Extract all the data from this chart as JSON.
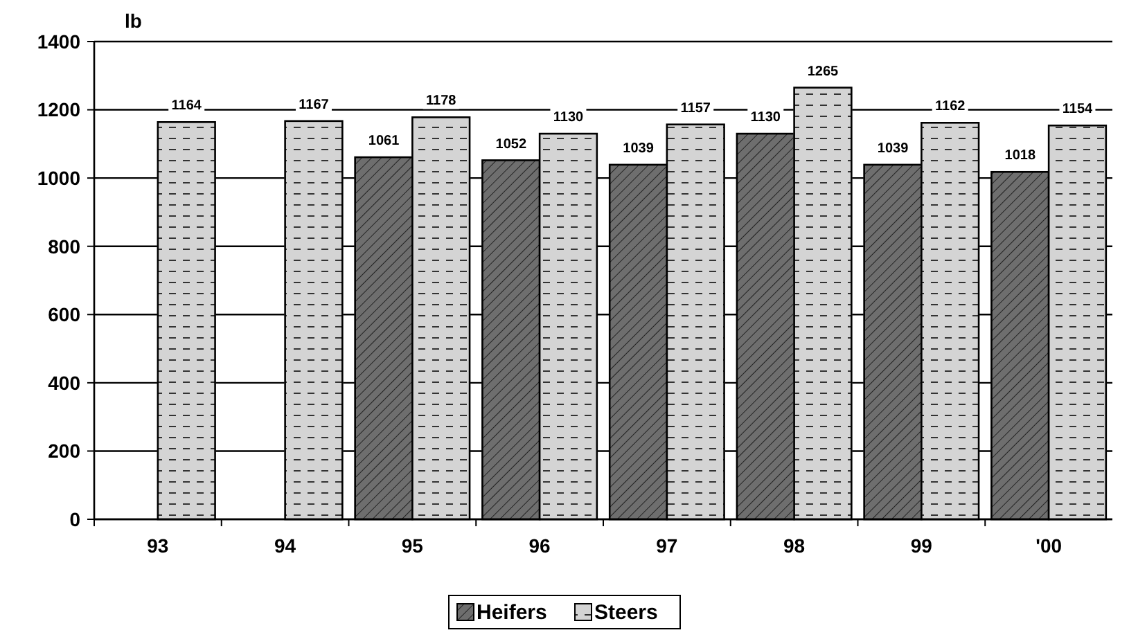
{
  "chart_data": {
    "type": "bar",
    "ylabel": "lb",
    "categories": [
      "93",
      "94",
      "95",
      "96",
      "97",
      "98",
      "99",
      "'00"
    ],
    "series": [
      {
        "name": "Heifers",
        "color": "#6e6e6e",
        "values": [
          null,
          null,
          1061,
          1052,
          1039,
          1130,
          1039,
          1018
        ]
      },
      {
        "name": "Steers",
        "color": "#d4d4d4",
        "values": [
          1164,
          1167,
          1178,
          1130,
          1157,
          1265,
          1162,
          1154
        ]
      }
    ],
    "ylim": [
      0,
      1400
    ],
    "yticks": [
      0,
      200,
      400,
      600,
      800,
      1000,
      1200,
      1400
    ],
    "grid": "y",
    "legend": "bottom",
    "data_labels": true
  }
}
